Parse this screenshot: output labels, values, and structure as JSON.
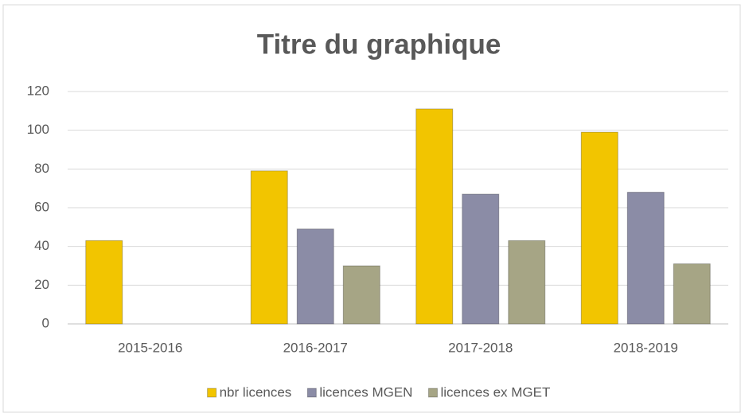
{
  "chart_data": {
    "type": "bar",
    "title": "Titre du graphique",
    "categories": [
      "2015-2016",
      "2016-2017",
      "2017-2018",
      "2018-2019"
    ],
    "series": [
      {
        "name": "nbr licences",
        "color": "#f2c500",
        "values": [
          43,
          79,
          111,
          99
        ]
      },
      {
        "name": "licences MGEN",
        "color": "#8b8ca6",
        "values": [
          null,
          49,
          67,
          68
        ]
      },
      {
        "name": "licences ex MGET",
        "color": "#a6a585",
        "values": [
          null,
          30,
          43,
          31
        ]
      }
    ],
    "ylim": [
      0,
      120
    ],
    "yticks": [
      0,
      20,
      40,
      60,
      80,
      100,
      120
    ],
    "grid": true,
    "legend": "bottom"
  }
}
